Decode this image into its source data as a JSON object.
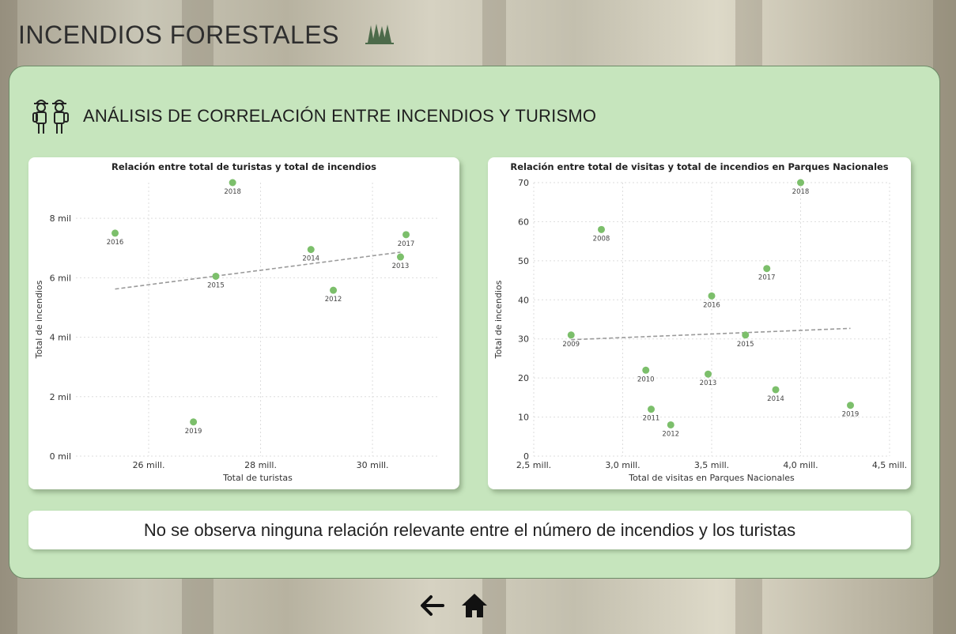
{
  "header": {
    "title": "INCENDIOS FORESTALES",
    "icon": "pine-trees-icon"
  },
  "panel": {
    "title": "ANÁLISIS DE CORRELACIÓN ENTRE INCENDIOS Y TURISMO",
    "icon": "hikers-icon",
    "background": "#c6e5bd"
  },
  "conclusion": {
    "text": "No se observa ninguna relación relevante entre el número de incendios y los turistas"
  },
  "nav": {
    "back_icon": "arrow-left-icon",
    "home_icon": "home-icon"
  },
  "chart_data": [
    {
      "type": "scatter",
      "title": "Relación entre total de turistas y total de incendios",
      "xlabel": "Total de turistas",
      "ylabel": "Total de incendios",
      "xlim": [
        24.7,
        31.2
      ],
      "ylim": [
        0,
        9200
      ],
      "xticks": [
        26,
        28,
        30
      ],
      "xtick_labels": [
        "26 mill.",
        "28 mill.",
        "30 mill."
      ],
      "yticks": [
        0,
        2000,
        4000,
        6000,
        8000
      ],
      "ytick_labels": [
        "0 mil",
        "2 mil",
        "4 mil",
        "6 mil",
        "8 mil"
      ],
      "points": [
        {
          "label": "2016",
          "x": 25.4,
          "y": 7500
        },
        {
          "label": "2018",
          "x": 27.5,
          "y": 9200
        },
        {
          "label": "2015",
          "x": 27.2,
          "y": 6050
        },
        {
          "label": "2014",
          "x": 28.9,
          "y": 6950
        },
        {
          "label": "2012",
          "x": 29.3,
          "y": 5580
        },
        {
          "label": "2017",
          "x": 30.6,
          "y": 7450
        },
        {
          "label": "2013",
          "x": 30.5,
          "y": 6700
        },
        {
          "label": "2019",
          "x": 26.8,
          "y": 1150
        }
      ],
      "trend": {
        "x": [
          25.4,
          30.5
        ],
        "y": [
          5620,
          6860
        ]
      },
      "point_color": "#7cbf6b",
      "grid": true
    },
    {
      "type": "scatter",
      "title": "Relación entre total de visitas y total de incendios en Parques Nacionales",
      "xlabel": "Total de visitas en Parques Nacionales",
      "ylabel": "Total de incendios",
      "xlim": [
        2.5,
        4.5
      ],
      "ylim": [
        0,
        70
      ],
      "xticks": [
        2.5,
        3.0,
        3.5,
        4.0,
        4.5
      ],
      "xtick_labels": [
        "2,5 mill.",
        "3,0 mill.",
        "3,5 mill.",
        "4,0 mill.",
        "4,5 mill."
      ],
      "yticks": [
        0,
        10,
        20,
        30,
        40,
        50,
        60,
        70
      ],
      "ytick_labels": [
        "0",
        "10",
        "20",
        "30",
        "40",
        "50",
        "60",
        "70"
      ],
      "points": [
        {
          "label": "2008",
          "x": 2.88,
          "y": 58
        },
        {
          "label": "2009",
          "x": 2.71,
          "y": 31
        },
        {
          "label": "2010",
          "x": 3.13,
          "y": 22
        },
        {
          "label": "2011",
          "x": 3.16,
          "y": 12
        },
        {
          "label": "2012",
          "x": 3.27,
          "y": 8
        },
        {
          "label": "2013",
          "x": 3.48,
          "y": 21
        },
        {
          "label": "2016",
          "x": 3.5,
          "y": 41
        },
        {
          "label": "2015",
          "x": 3.69,
          "y": 31
        },
        {
          "label": "2017",
          "x": 3.81,
          "y": 48
        },
        {
          "label": "2014",
          "x": 3.86,
          "y": 17
        },
        {
          "label": "2018",
          "x": 4.0,
          "y": 70
        },
        {
          "label": "2019",
          "x": 4.28,
          "y": 13
        }
      ],
      "trend": {
        "x": [
          2.71,
          4.28
        ],
        "y": [
          29.8,
          32.7
        ]
      },
      "point_color": "#7cbf6b",
      "grid": true
    }
  ]
}
